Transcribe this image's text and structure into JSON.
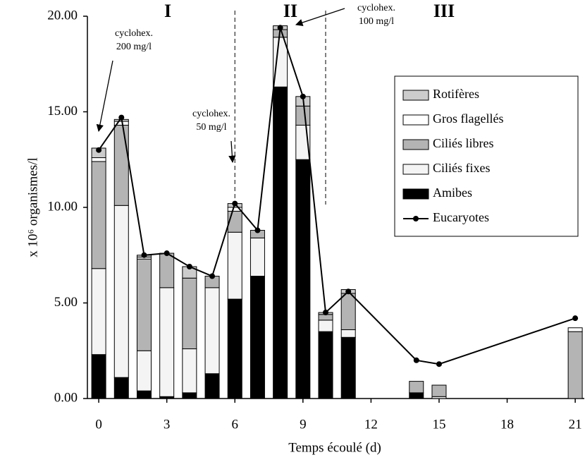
{
  "chart_data": {
    "type": "bar",
    "x_label": "Temps écoulé (d)",
    "y_label": "x 10⁶ organismes/l",
    "x": [
      0,
      1,
      2,
      3,
      4,
      5,
      6,
      7,
      8,
      9,
      10,
      11,
      14,
      15,
      21
    ],
    "series": [
      {
        "name": "Amibes",
        "color": "#000000",
        "values": [
          2.3,
          1.1,
          0.4,
          0.1,
          0.3,
          1.3,
          5.2,
          6.4,
          16.3,
          12.5,
          3.5,
          3.2,
          0.3,
          0,
          0
        ]
      },
      {
        "name": "Ciliés fixes",
        "color": "#f4f4f4",
        "values": [
          4.5,
          9.0,
          2.1,
          5.7,
          2.3,
          4.5,
          3.5,
          2.0,
          2.6,
          1.8,
          0.6,
          0.4,
          0,
          0.1,
          0
        ]
      },
      {
        "name": "Ciliés libres",
        "color": "#b4b4b4",
        "values": [
          5.6,
          4.2,
          4.8,
          1.8,
          3.7,
          0.6,
          1.1,
          0.4,
          0.4,
          1.0,
          0.3,
          1.9,
          0.6,
          0.6,
          3.5
        ]
      },
      {
        "name": "Gros flagellés",
        "color": "#ffffff",
        "values": [
          0.2,
          0.2,
          0.1,
          0,
          0,
          0,
          0.2,
          0,
          0,
          0,
          0,
          0,
          0,
          0,
          0.2
        ]
      },
      {
        "name": "Rotifères",
        "color": "#cccccc",
        "values": [
          0.5,
          0.1,
          0.1,
          0,
          0.6,
          0,
          0.2,
          0,
          0.2,
          0.5,
          0.1,
          0.2,
          0,
          0,
          0
        ]
      },
      {
        "name": "Eucaryotes",
        "type": "line",
        "color": "#000000",
        "values": [
          13.0,
          14.7,
          7.5,
          7.6,
          6.9,
          6.4,
          10.2,
          8.8,
          19.4,
          15.8,
          4.5,
          5.6,
          2.0,
          1.8,
          4.2
        ]
      }
    ],
    "xlim": [
      -0.5,
      21.4
    ],
    "xticks": [
      0,
      3,
      6,
      9,
      12,
      15,
      18,
      21
    ],
    "ylim": [
      0,
      20
    ],
    "yticks": [
      {
        "value": 0,
        "label": "0.00"
      },
      {
        "value": 5,
        "label": "5.00"
      },
      {
        "value": 10,
        "label": "10.00"
      },
      {
        "value": 15,
        "label": "15.00"
      },
      {
        "value": 20,
        "label": "20.00"
      }
    ],
    "regions": [
      "I",
      "II",
      "III"
    ],
    "annotations": [
      [
        "cyclohex.",
        "200 mg/l"
      ],
      [
        "cyclohex.",
        "50 mg/l"
      ],
      [
        "cyclohex.",
        "100 mg/l"
      ]
    ],
    "legend": "upper right"
  }
}
